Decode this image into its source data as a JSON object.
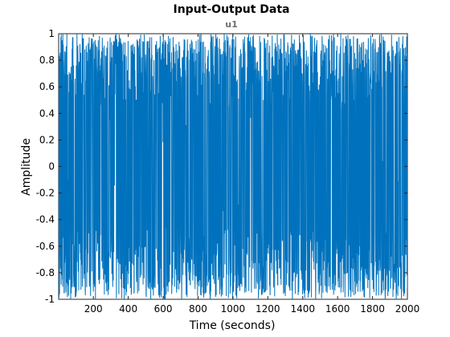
{
  "chart_data": {
    "type": "line",
    "title": "Input-Output Data",
    "subtitle": "u1",
    "xlabel": "Time (seconds)",
    "ylabel": "Amplitude",
    "xlim": [
      1,
      2000
    ],
    "ylim": [
      -1,
      1
    ],
    "x_ticks": [
      200,
      400,
      600,
      800,
      1000,
      1200,
      1400,
      1600,
      1800,
      2000
    ],
    "y_ticks": [
      1,
      0.8,
      0.6,
      0.4,
      0.2,
      0,
      -0.2,
      -0.4,
      -0.6,
      -0.8,
      -1
    ],
    "x_tick_labels": [
      "200",
      "400",
      "600",
      "800",
      "1000",
      "1200",
      "1400",
      "1600",
      "1800",
      "2000"
    ],
    "y_tick_labels": [
      "1",
      "0.8",
      "0.6",
      "0.4",
      "0.2",
      "0",
      "-0.2",
      "-0.4",
      "-0.6",
      "-0.8",
      "-1"
    ],
    "grid": false,
    "series": [
      {
        "color": "#0072bd",
        "x_start": 1,
        "x_end": 2000,
        "x_step": 1,
        "y_range": [
          -1,
          1
        ],
        "description": "dense random binary-like signal switching between about -1 and 1"
      }
    ]
  }
}
